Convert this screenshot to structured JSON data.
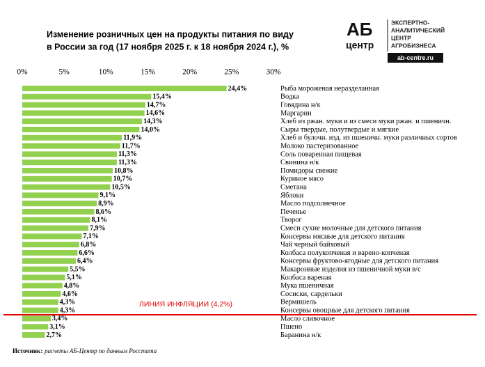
{
  "chart_data": {
    "type": "bar",
    "orientation": "horizontal",
    "title": [
      "Изменение розничных цен на продукты питания по виду",
      "в России за год (17 ноября 2025 г. к 18 ноября 2024 г.), %"
    ],
    "logo": {
      "mark_top": "АБ",
      "mark_bottom": "центр",
      "caption": [
        "ЭКСПЕРТНО-",
        "АНАЛИТИЧЕСКИЙ",
        "ЦЕНТР",
        "АГРОБИЗНЕСА"
      ],
      "site": "ab-centre.ru"
    },
    "categories": [
      "Рыба мороженая неразделанная",
      "Водка",
      "Говядина н/к",
      "Маргарин",
      "Хлеб из ржан. муки и из смеси муки ржан. и пшеничн.",
      "Сыры твердые, полутвердые и мягкие",
      "Хлеб и булочн. изд. из пшеничн. муки различных сортов",
      "Молоко пастеризованное",
      "Соль поваренная пищевая",
      "Свинина н/к",
      "Помидоры свежие",
      "Куриное мясо",
      "Сметана",
      "Яблоки",
      "Масло подсолнечное",
      "Печенье",
      "Творог",
      "Смеси сухие молочные для детского питания",
      "Консервы мясные для детского питания",
      "Чай черный байховый",
      "Колбаса полукопченая и варено-копченая",
      "Консервы фруктово-ягодные для детского питания",
      "Макаронные изделия из пшеничной муки в/с",
      "Колбаса вареная",
      "Мука пшеничная",
      "Сосиски, сардельки",
      "Вермишель",
      "Консервы овощные для детского питания",
      "Масло сливочное",
      "Пшено",
      "Баранина н/к"
    ],
    "values": [
      24.4,
      15.4,
      14.7,
      14.6,
      14.3,
      14.0,
      11.9,
      11.7,
      11.3,
      11.3,
      10.8,
      10.7,
      10.5,
      9.1,
      8.9,
      8.6,
      8.1,
      7.9,
      7.1,
      6.8,
      6.6,
      6.4,
      5.5,
      5.1,
      4.8,
      4.6,
      4.3,
      4.3,
      3.4,
      3.1,
      2.7
    ],
    "value_labels": [
      "24,4%",
      "15,4%",
      "14,7%",
      "14,6%",
      "14,3%",
      "14,0%",
      "11,9%",
      "11,7%",
      "11,3%",
      "11,3%",
      "10,8%",
      "10,7%",
      "10,5%",
      "9,1%",
      "8,9%",
      "8,6%",
      "8,1%",
      "7,9%",
      "7,1%",
      "6,8%",
      "6,6%",
      "6,4%",
      "5,5%",
      "5,1%",
      "4,8%",
      "4,6%",
      "4,3%",
      "4,3%",
      "3,4%",
      "3,1%",
      "2,7%"
    ],
    "color": "#92d050",
    "xlim": [
      0,
      30
    ],
    "xticks": [
      {
        "value": 0,
        "label": "0%"
      },
      {
        "value": 5,
        "label": "5%"
      },
      {
        "value": 10,
        "label": "10%"
      },
      {
        "value": 15,
        "label": "15%"
      },
      {
        "value": 20,
        "label": "20%"
      },
      {
        "value": 25,
        "label": "25%"
      },
      {
        "value": 30,
        "label": "30%"
      }
    ],
    "grid": false,
    "inflation_label": "ЛИНИЯ ИНФЛЯЦИИ (4,2%)",
    "inflation_color": "#e00000",
    "source_label": "Источник:",
    "source": "расчеты АБ-Центр по данным Росстата"
  }
}
